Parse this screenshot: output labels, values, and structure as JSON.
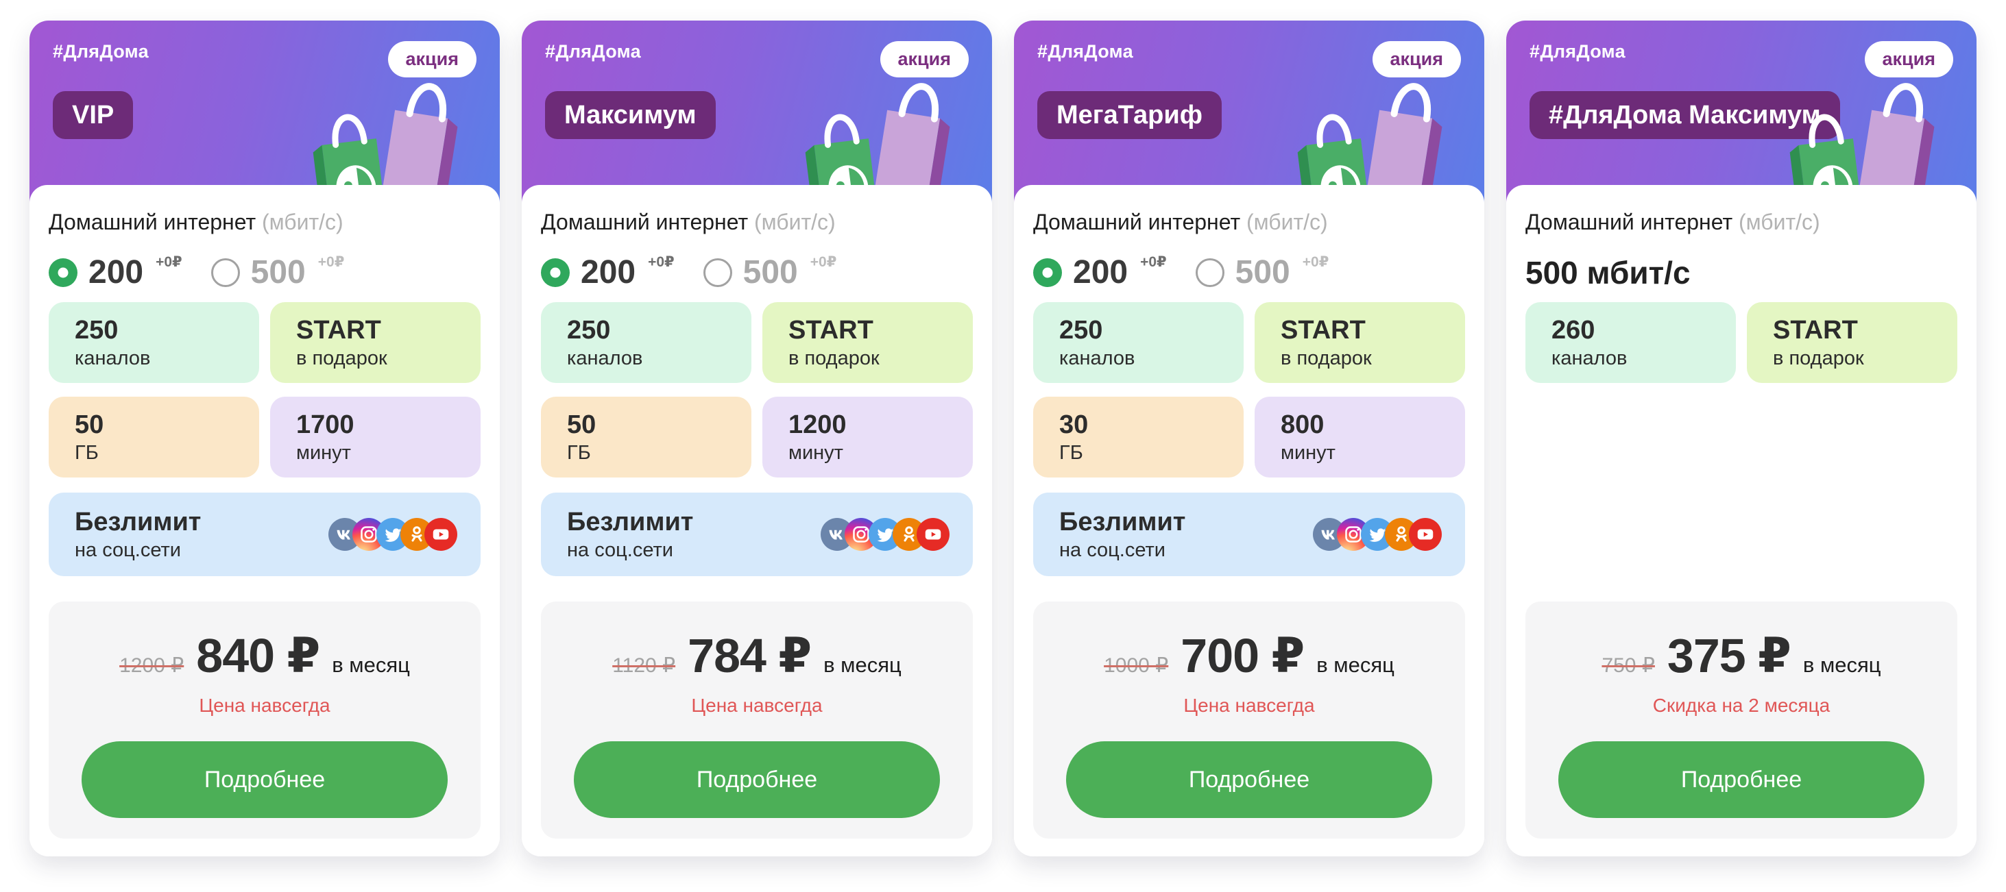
{
  "theme": {
    "header_gradient_from": "#a257d3",
    "header_gradient_to": "#5c7de8",
    "name_badge_bg": "#6d2b78",
    "promo_text_color": "#7b2f80",
    "radio_selected_green": "#2fa85c",
    "button_green": "#4caf57",
    "price_panel_bg": "#f5f5f6",
    "note_red": "#e05656",
    "old_price_gray": "#a3a3a3",
    "strike_red": "#cf6f66",
    "chip_colors": {
      "mint": "#d9f6e5",
      "lime": "#e4f6c3",
      "peach": "#fbe7c8",
      "lavender": "#e9dff8",
      "blue": "#d6e9fb"
    },
    "social_colors": {
      "vk": "#6b85ab",
      "twitter": "#53a4ea",
      "ok": "#ee8208",
      "youtube": "#e62b25"
    }
  },
  "cards": [
    {
      "hashtag": "#ДляДома",
      "promo_badge": "акция",
      "name": "VIP",
      "internet": {
        "label": "Домашний интернет",
        "unit": "(мбит/с)"
      },
      "speed_options": [
        {
          "value": "200",
          "bonus": "+0₽",
          "selected": true
        },
        {
          "value": "500",
          "bonus": "+0₽",
          "selected": false
        }
      ],
      "speed_text": "",
      "chips": [
        {
          "key": "channels",
          "value": "250",
          "label": "каналов",
          "color": "mint"
        },
        {
          "key": "start-gift",
          "value": "START",
          "label": "в подарок",
          "color": "lime"
        },
        {
          "key": "data",
          "value": "50",
          "label": "ГБ",
          "color": "peach"
        },
        {
          "key": "minutes",
          "value": "1700",
          "label": "минут",
          "color": "lavender"
        }
      ],
      "unlimited": {
        "title": "Безлимит",
        "subtitle": "на соц.сети",
        "icons": [
          "vk-icon",
          "instagram-icon",
          "twitter-icon",
          "ok-icon",
          "youtube-icon"
        ]
      },
      "price": {
        "old": "1200 ₽",
        "current": "840 ₽",
        "period": "в месяц",
        "note": "Цена навсегда"
      },
      "details_button": "Подробнее"
    },
    {
      "hashtag": "#ДляДома",
      "promo_badge": "акция",
      "name": "Максимум",
      "internet": {
        "label": "Домашний интернет",
        "unit": "(мбит/с)"
      },
      "speed_options": [
        {
          "value": "200",
          "bonus": "+0₽",
          "selected": true
        },
        {
          "value": "500",
          "bonus": "+0₽",
          "selected": false
        }
      ],
      "speed_text": "",
      "chips": [
        {
          "key": "channels",
          "value": "250",
          "label": "каналов",
          "color": "mint"
        },
        {
          "key": "start-gift",
          "value": "START",
          "label": "в подарок",
          "color": "lime"
        },
        {
          "key": "data",
          "value": "50",
          "label": "ГБ",
          "color": "peach"
        },
        {
          "key": "minutes",
          "value": "1200",
          "label": "минут",
          "color": "lavender"
        }
      ],
      "unlimited": {
        "title": "Безлимит",
        "subtitle": "на соц.сети",
        "icons": [
          "vk-icon",
          "instagram-icon",
          "twitter-icon",
          "ok-icon",
          "youtube-icon"
        ]
      },
      "price": {
        "old": "1120 ₽",
        "current": "784 ₽",
        "period": "в месяц",
        "note": "Цена навсегда"
      },
      "details_button": "Подробнее"
    },
    {
      "hashtag": "#ДляДома",
      "promo_badge": "акция",
      "name": "МегаТариф",
      "internet": {
        "label": "Домашний интернет",
        "unit": "(мбит/с)"
      },
      "speed_options": [
        {
          "value": "200",
          "bonus": "+0₽",
          "selected": true
        },
        {
          "value": "500",
          "bonus": "+0₽",
          "selected": false
        }
      ],
      "speed_text": "",
      "chips": [
        {
          "key": "channels",
          "value": "250",
          "label": "каналов",
          "color": "mint"
        },
        {
          "key": "start-gift",
          "value": "START",
          "label": "в подарок",
          "color": "lime"
        },
        {
          "key": "data",
          "value": "30",
          "label": "ГБ",
          "color": "peach"
        },
        {
          "key": "minutes",
          "value": "800",
          "label": "минут",
          "color": "lavender"
        }
      ],
      "unlimited": {
        "title": "Безлимит",
        "subtitle": "на соц.сети",
        "icons": [
          "vk-icon",
          "instagram-icon",
          "twitter-icon",
          "ok-icon",
          "youtube-icon"
        ]
      },
      "price": {
        "old": "1000 ₽",
        "current": "700 ₽",
        "period": "в месяц",
        "note": "Цена навсегда"
      },
      "details_button": "Подробнее"
    },
    {
      "hashtag": "#ДляДома",
      "promo_badge": "акция",
      "name": "#ДляДома Максимум",
      "internet": {
        "label": "Домашний интернет",
        "unit": "(мбит/с)"
      },
      "speed_options": [],
      "speed_text": "500 мбит/с",
      "chips": [
        {
          "key": "channels",
          "value": "260",
          "label": "каналов",
          "color": "mint"
        },
        {
          "key": "start-gift",
          "value": "START",
          "label": "в подарок",
          "color": "lime"
        }
      ],
      "unlimited": null,
      "price": {
        "old": "750 ₽",
        "current": "375 ₽",
        "period": "в месяц",
        "note": "Скидка на 2 месяца"
      },
      "details_button": "Подробнее"
    }
  ]
}
